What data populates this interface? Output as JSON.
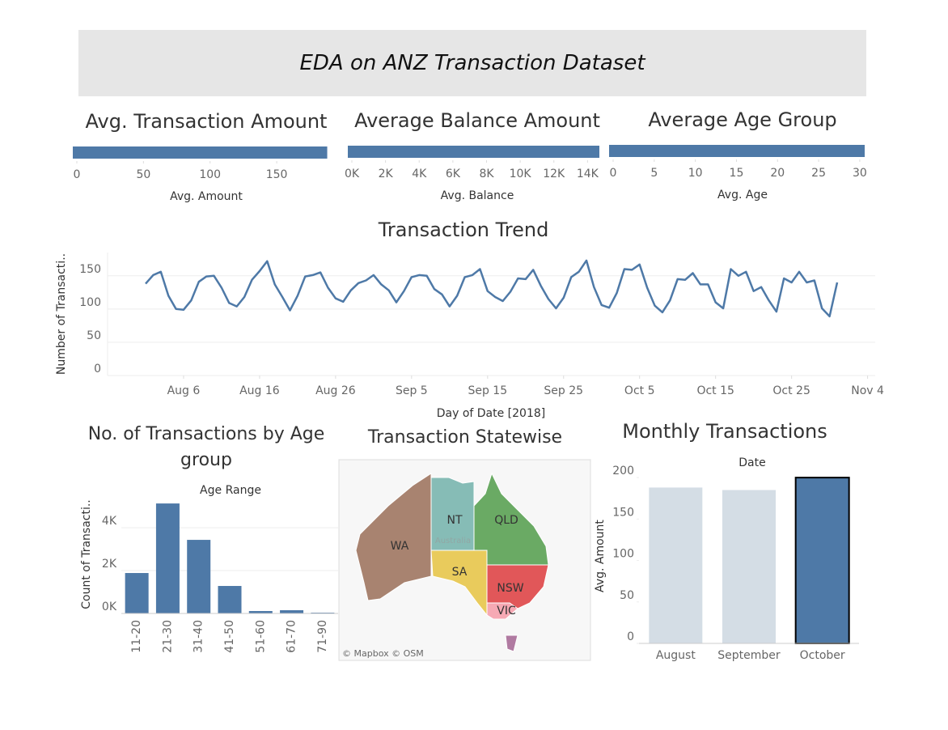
{
  "header": {
    "title": "EDA on ANZ Transaction Dataset"
  },
  "chart_data": [
    {
      "type": "bar",
      "orientation": "horizontal",
      "title": "Avg. Transaction Amount",
      "xlabel": "Avg. Amount",
      "values": [
        187.9
      ],
      "color": "#4e79a7",
      "xlim": [
        0,
        190
      ],
      "xticks": [
        0,
        50,
        100,
        150
      ]
    },
    {
      "type": "bar",
      "orientation": "horizontal",
      "title": "Average Balance Amount",
      "xlabel": "Avg. Balance",
      "values": [
        14704
      ],
      "color": "#4e79a7",
      "xlim": [
        0,
        14800
      ],
      "xticks": [
        {
          "value": 0,
          "label": "0K"
        },
        {
          "value": 2000,
          "label": "2K"
        },
        {
          "value": 4000,
          "label": "4K"
        },
        {
          "value": 6000,
          "label": "6K"
        },
        {
          "value": 8000,
          "label": "8K"
        },
        {
          "value": 10000,
          "label": "10K"
        },
        {
          "value": 12000,
          "label": "12K"
        },
        {
          "value": 14000,
          "label": "14K"
        }
      ]
    },
    {
      "type": "bar",
      "orientation": "horizontal",
      "title": "Average Age Group",
      "xlabel": "Avg. Age",
      "values": [
        30.6
      ],
      "color": "#4e79a7",
      "xlim": [
        0,
        30.6
      ],
      "xticks": [
        0,
        5,
        10,
        15,
        20,
        25,
        30
      ]
    },
    {
      "type": "line",
      "title": "Transaction Trend",
      "xlabel": "Day of Date [2018]",
      "ylabel": "Number of Transacti..",
      "color": "#4e79a7",
      "grid": true,
      "x": [
        "2018-08-01",
        "2018-08-02",
        "2018-08-03",
        "2018-08-04",
        "2018-08-05",
        "2018-08-06",
        "2018-08-07",
        "2018-08-08",
        "2018-08-09",
        "2018-08-10",
        "2018-08-11",
        "2018-08-12",
        "2018-08-13",
        "2018-08-14",
        "2018-08-15",
        "2018-08-16",
        "2018-08-17",
        "2018-08-18",
        "2018-08-19",
        "2018-08-20",
        "2018-08-21",
        "2018-08-22",
        "2018-08-23",
        "2018-08-24",
        "2018-08-25",
        "2018-08-26",
        "2018-08-27",
        "2018-08-28",
        "2018-08-29",
        "2018-08-30",
        "2018-08-31",
        "2018-09-01",
        "2018-09-02",
        "2018-09-03",
        "2018-09-04",
        "2018-09-05",
        "2018-09-06",
        "2018-09-07",
        "2018-09-08",
        "2018-09-09",
        "2018-09-10",
        "2018-09-11",
        "2018-09-12",
        "2018-09-13",
        "2018-09-14",
        "2018-09-15",
        "2018-09-16",
        "2018-09-17",
        "2018-09-18",
        "2018-09-19",
        "2018-09-20",
        "2018-09-21",
        "2018-09-22",
        "2018-09-23",
        "2018-09-24",
        "2018-09-25",
        "2018-09-26",
        "2018-09-27",
        "2018-09-28",
        "2018-09-29",
        "2018-09-30",
        "2018-10-01",
        "2018-10-02",
        "2018-10-03",
        "2018-10-04",
        "2018-10-05",
        "2018-10-06",
        "2018-10-07",
        "2018-10-08",
        "2018-10-09",
        "2018-10-10",
        "2018-10-11",
        "2018-10-12",
        "2018-10-13",
        "2018-10-14",
        "2018-10-15",
        "2018-10-16",
        "2018-10-17",
        "2018-10-18",
        "2018-10-19",
        "2018-10-20",
        "2018-10-21",
        "2018-10-22",
        "2018-10-23",
        "2018-10-24",
        "2018-10-25",
        "2018-10-26",
        "2018-10-27",
        "2018-10-28",
        "2018-10-29",
        "2018-10-30",
        "2018-10-31"
      ],
      "values": [
        138,
        151,
        156,
        120,
        100,
        99,
        113,
        141,
        149,
        150,
        132,
        109,
        104,
        118,
        144,
        157,
        172,
        137,
        118,
        98,
        120,
        149,
        151,
        155,
        132,
        116,
        111,
        128,
        139,
        143,
        151,
        137,
        128,
        110,
        127,
        148,
        151,
        150,
        130,
        122,
        104,
        120,
        148,
        151,
        160,
        127,
        118,
        112,
        126,
        146,
        145,
        159,
        135,
        115,
        101,
        117,
        148,
        156,
        173,
        133,
        106,
        102,
        124,
        160,
        159,
        167,
        132,
        105,
        95,
        113,
        145,
        144,
        154,
        137,
        137,
        110,
        101,
        160,
        150,
        156,
        127,
        133,
        113,
        96,
        146,
        140,
        156,
        140,
        143,
        101,
        89,
        140
      ],
      "xlim": [
        "2018-07-27",
        "2018-11-05"
      ],
      "xticks": [
        {
          "value": "2018-08-06",
          "label": "Aug 6"
        },
        {
          "value": "2018-08-16",
          "label": "Aug 16"
        },
        {
          "value": "2018-08-26",
          "label": "Aug 26"
        },
        {
          "value": "2018-09-05",
          "label": "Sep 5"
        },
        {
          "value": "2018-09-15",
          "label": "Sep 15"
        },
        {
          "value": "2018-09-25",
          "label": "Sep 25"
        },
        {
          "value": "2018-10-05",
          "label": "Oct 5"
        },
        {
          "value": "2018-10-15",
          "label": "Oct 15"
        },
        {
          "value": "2018-10-25",
          "label": "Oct 25"
        },
        {
          "value": "2018-11-04",
          "label": "Nov 4"
        }
      ],
      "ylim": [
        0,
        185
      ],
      "yticks": [
        0,
        50,
        100,
        150
      ]
    },
    {
      "type": "bar",
      "title": "No. of Transactions by Age group",
      "xlabel": "Age Range",
      "ylabel": "Count of Transacti..",
      "color": "#4e79a7",
      "grid": true,
      "categories": [
        "11-20",
        "21-30",
        "31-40",
        "41-50",
        "51-60",
        "61-70",
        "71-90"
      ],
      "values": [
        1887,
        5132,
        3434,
        1283,
        113,
        151,
        38
      ],
      "ylim": [
        0,
        5400
      ],
      "yticks": [
        {
          "value": 0,
          "label": "0K"
        },
        {
          "value": 2000,
          "label": "2K"
        },
        {
          "value": 4000,
          "label": "4K"
        }
      ]
    },
    {
      "type": "map",
      "title": "Transaction Statewise",
      "region_label": "Australia",
      "attribution": "© Mapbox © OSM",
      "regions": [
        {
          "name": "WA",
          "color": "#a88370"
        },
        {
          "name": "NT",
          "color": "#86bcb6"
        },
        {
          "name": "QLD",
          "color": "#6aaa64"
        },
        {
          "name": "SA",
          "color": "#e9cb5c"
        },
        {
          "name": "NSW",
          "color": "#e15759"
        },
        {
          "name": "VIC",
          "color": "#f6a9b4"
        },
        {
          "name": null,
          "color": "#b07aa1"
        }
      ]
    },
    {
      "type": "bar",
      "title": "Monthly Transactions",
      "xlabel": "Date",
      "ylabel": "Avg. Amount",
      "grid": false,
      "categories": [
        "August",
        "September",
        "October"
      ],
      "values": [
        188,
        185,
        200
      ],
      "colors": [
        "#d4dde5",
        "#d4dde5",
        "#4e79a7"
      ],
      "edgecolors": [
        "none",
        "none",
        "#000000"
      ],
      "ylim": [
        0,
        205
      ],
      "yticks": [
        0,
        50,
        100,
        150,
        200
      ]
    }
  ]
}
